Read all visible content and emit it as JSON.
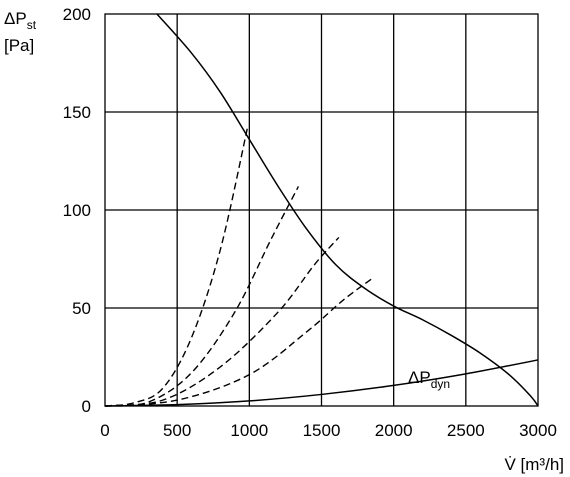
{
  "chart_data": {
    "type": "line",
    "ylabel_main": "ΔP",
    "ylabel_sub": "st",
    "ylabel_unit": "[Pa]",
    "xlabel": "V̇ [m³/h]",
    "xlim": [
      0,
      3000
    ],
    "ylim": [
      0,
      200
    ],
    "x_ticks": [
      0,
      500,
      1000,
      1500,
      2000,
      2500,
      3000
    ],
    "y_ticks": [
      0,
      50,
      100,
      150,
      200
    ],
    "grid": true,
    "series": [
      {
        "style": "solid",
        "points": [
          [
            360,
            200
          ],
          [
            600,
            180
          ],
          [
            800,
            160
          ],
          [
            1000,
            136
          ],
          [
            1200,
            112
          ],
          [
            1400,
            90
          ],
          [
            1600,
            72
          ],
          [
            1800,
            60
          ],
          [
            2000,
            51
          ],
          [
            2200,
            44
          ],
          [
            2400,
            36
          ],
          [
            2600,
            27
          ],
          [
            2800,
            16
          ],
          [
            2950,
            5
          ],
          [
            3000,
            0
          ]
        ]
      },
      {
        "name": "ΔPdyn",
        "label_main": "ΔP",
        "label_sub": "dyn",
        "style": "solid",
        "points": [
          [
            0,
            0
          ],
          [
            500,
            0.7
          ],
          [
            1000,
            2.6
          ],
          [
            1500,
            5.9
          ],
          [
            2000,
            10.5
          ],
          [
            2500,
            16.4
          ],
          [
            3000,
            23.5
          ]
        ]
      },
      {
        "style": "dashed",
        "points": [
          [
            0,
            0
          ],
          [
            200,
            1.6
          ],
          [
            400,
            9
          ],
          [
            600,
            35
          ],
          [
            800,
            80
          ],
          [
            990,
            143
          ]
        ]
      },
      {
        "style": "dashed",
        "points": [
          [
            0,
            0
          ],
          [
            300,
            2
          ],
          [
            600,
            17
          ],
          [
            900,
            48
          ],
          [
            1150,
            85
          ],
          [
            1340,
            112
          ]
        ]
      },
      {
        "style": "dashed",
        "points": [
          [
            0,
            0
          ],
          [
            400,
            3
          ],
          [
            800,
            20
          ],
          [
            1200,
            48
          ],
          [
            1450,
            72
          ],
          [
            1620,
            86
          ]
        ]
      },
      {
        "style": "dashed",
        "points": [
          [
            0,
            0
          ],
          [
            500,
            3
          ],
          [
            1000,
            16
          ],
          [
            1400,
            38
          ],
          [
            1650,
            54
          ],
          [
            1850,
            65
          ]
        ]
      }
    ]
  }
}
